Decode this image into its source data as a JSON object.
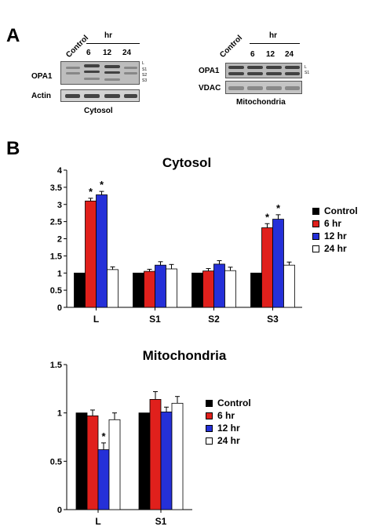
{
  "panel_a": {
    "letter": "A",
    "cytosol": {
      "control_label": "Control",
      "hr_label": "hr",
      "timepoints": [
        "6",
        "12",
        "24"
      ],
      "row_labels": [
        "OPA1",
        "Actin"
      ],
      "band_markers": [
        "L",
        "S1",
        "S2",
        "S3"
      ],
      "caption": "Cytosol"
    },
    "mito": {
      "control_label": "Control",
      "hr_label": "hr",
      "timepoints": [
        "6",
        "12",
        "24"
      ],
      "row_labels": [
        "OPA1",
        "VDAC"
      ],
      "band_markers": [
        "L",
        "S1"
      ],
      "caption": "Mitochondria"
    }
  },
  "panel_b": {
    "letter": "B"
  },
  "chart_data": [
    {
      "type": "bar",
      "title": "Cytosol",
      "categories": [
        "L",
        "S1",
        "S2",
        "S3"
      ],
      "series": [
        {
          "name": "Control",
          "color": "#000000",
          "values": [
            1,
            1,
            1,
            1
          ],
          "errors": [
            0,
            0,
            0,
            0
          ]
        },
        {
          "name": "6 hr",
          "color": "#e0201c",
          "values": [
            3.1,
            1.05,
            1.06,
            2.32
          ],
          "errors": [
            0.08,
            0.06,
            0.07,
            0.12
          ]
        },
        {
          "name": "12 hr",
          "color": "#2530d8",
          "values": [
            3.28,
            1.23,
            1.26,
            2.57
          ],
          "errors": [
            0.1,
            0.1,
            0.1,
            0.13
          ]
        },
        {
          "name": "24 hr",
          "color": "#ffffff",
          "values": [
            1.1,
            1.12,
            1.07,
            1.23
          ],
          "errors": [
            0.08,
            0.13,
            0.1,
            0.09
          ]
        }
      ],
      "significance": [
        {
          "category": "L",
          "series": "6 hr",
          "label": "*"
        },
        {
          "category": "L",
          "series": "12 hr",
          "label": "*"
        },
        {
          "category": "S3",
          "series": "6 hr",
          "label": "*"
        },
        {
          "category": "S3",
          "series": "12 hr",
          "label": "*"
        }
      ],
      "ylim": [
        0,
        4
      ],
      "yticks": [
        "0",
        "0.5",
        "1",
        "1.5",
        "2",
        "2.5",
        "3",
        "3.5",
        "4"
      ],
      "legend_position": "right"
    },
    {
      "type": "bar",
      "title": "Mitochondria",
      "categories": [
        "L",
        "S1"
      ],
      "series": [
        {
          "name": "Control",
          "color": "#000000",
          "values": [
            1,
            1
          ],
          "errors": [
            0,
            0
          ]
        },
        {
          "name": "6 hr",
          "color": "#e0201c",
          "values": [
            0.97,
            1.14
          ],
          "errors": [
            0.06,
            0.08
          ]
        },
        {
          "name": "12 hr",
          "color": "#2530d8",
          "values": [
            0.62,
            1.01
          ],
          "errors": [
            0.07,
            0.05
          ]
        },
        {
          "name": "24 hr",
          "color": "#ffffff",
          "values": [
            0.93,
            1.1
          ],
          "errors": [
            0.07,
            0.07
          ]
        }
      ],
      "significance": [
        {
          "category": "L",
          "series": "12 hr",
          "label": "*"
        }
      ],
      "ylim": [
        0,
        1.5
      ],
      "yticks": [
        "0",
        "0.5",
        "1",
        "1.5"
      ],
      "legend_position": "right"
    }
  ]
}
